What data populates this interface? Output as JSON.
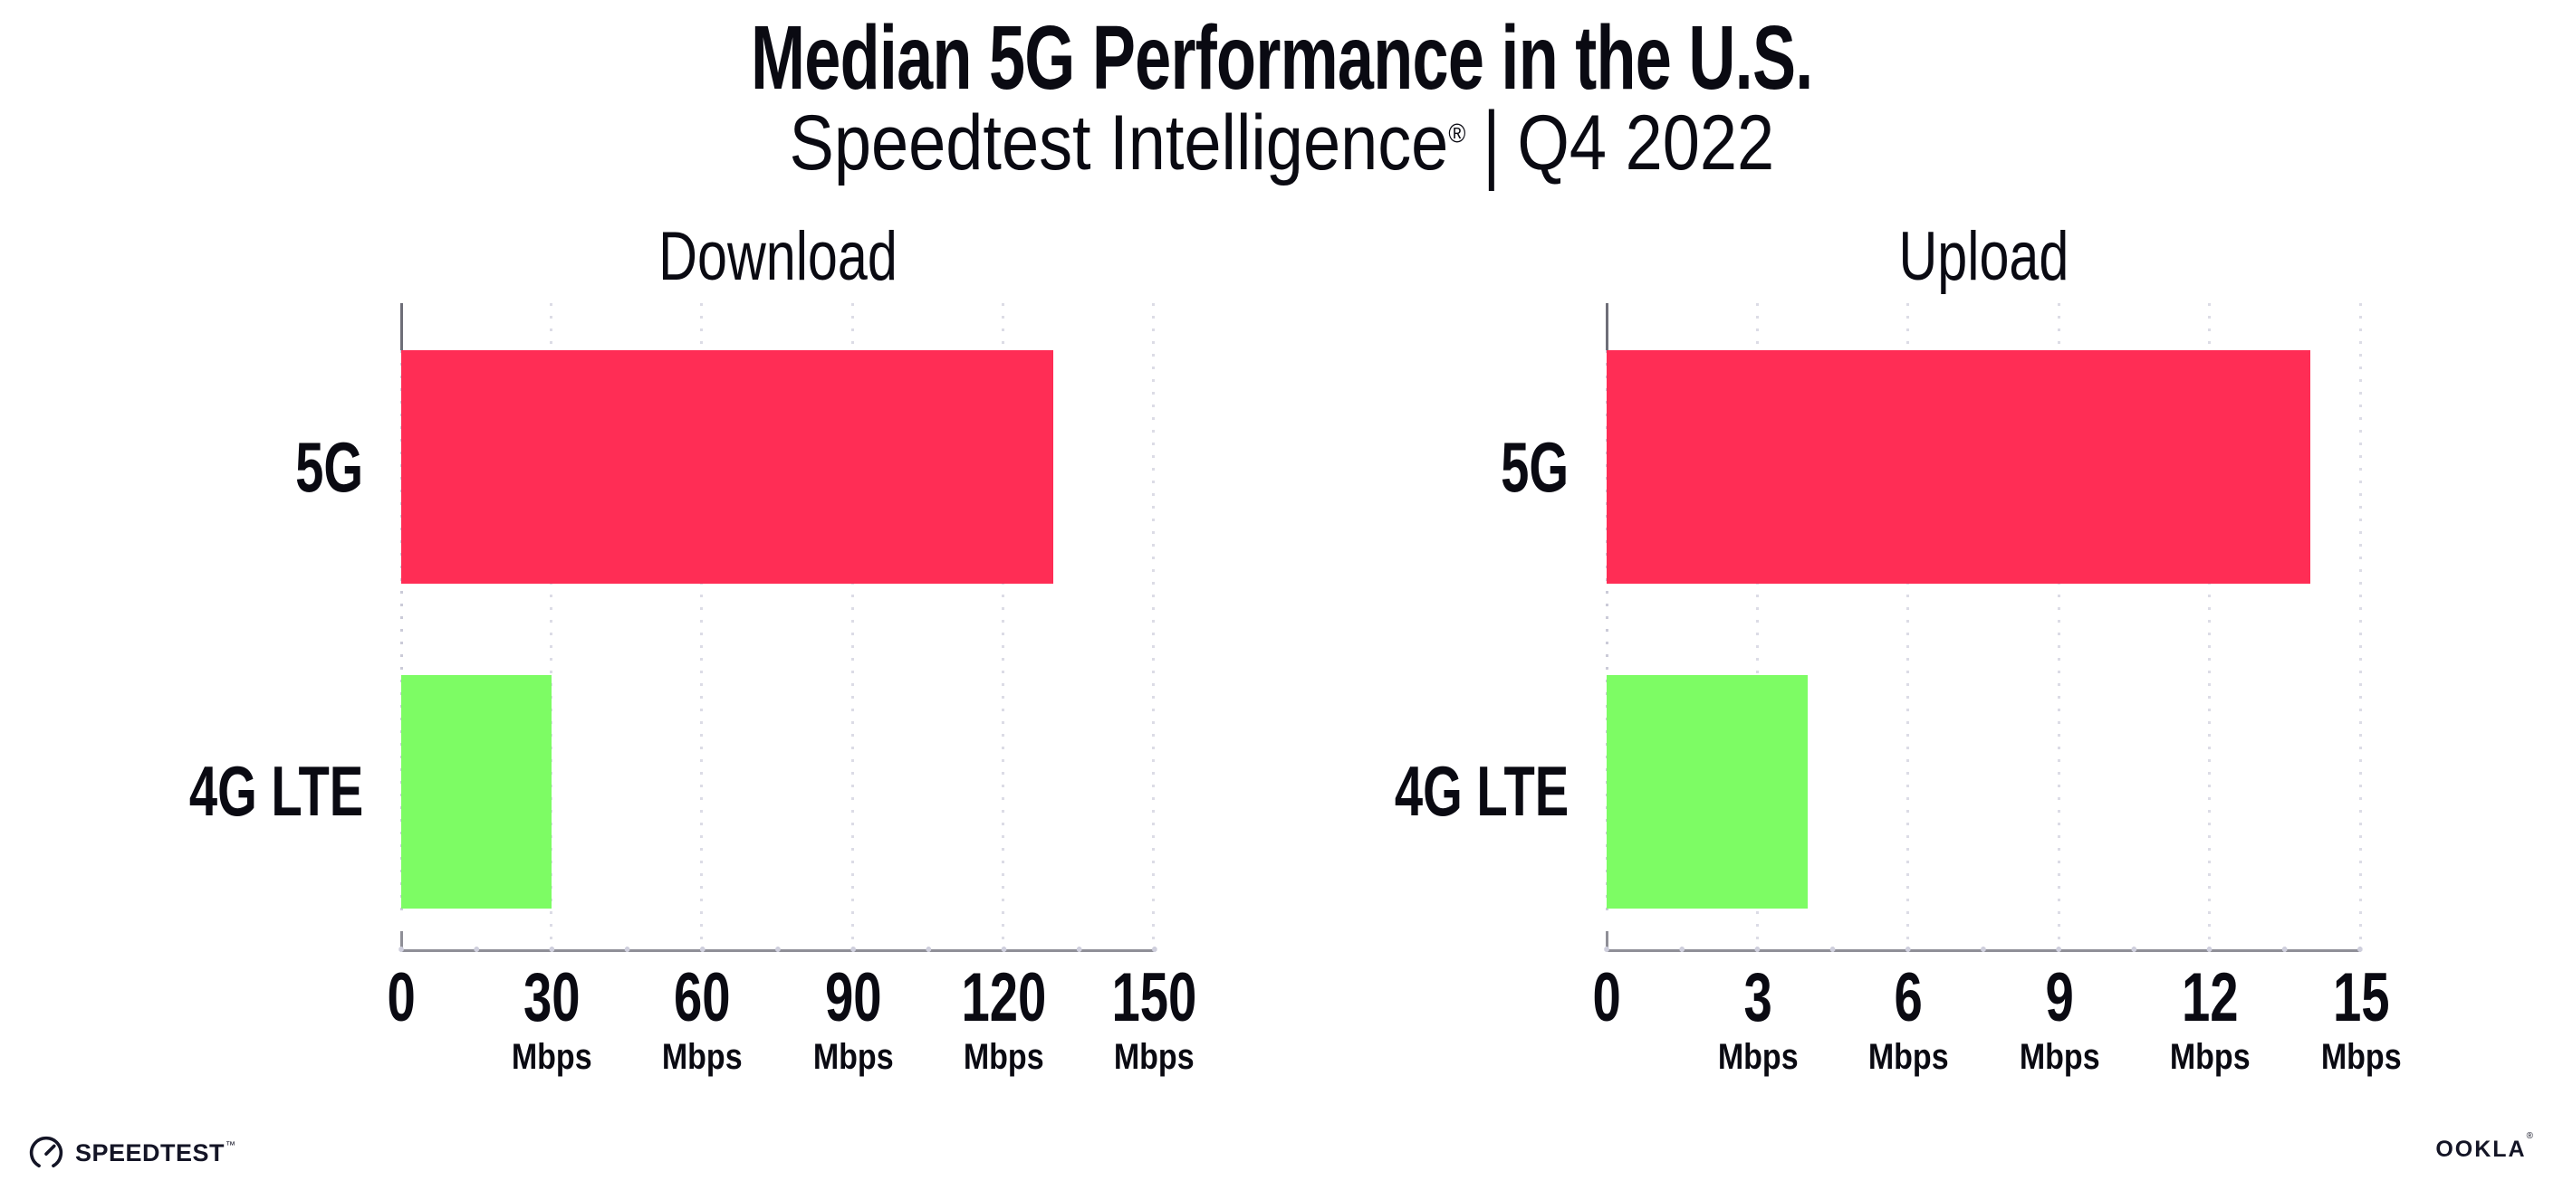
{
  "header": {
    "title": "Median 5G Performance in the U.S.",
    "subtitle_product": "Speedtest Intelligence",
    "subtitle_reg_mark": "®",
    "subtitle_separator": "|",
    "subtitle_period": "Q4 2022"
  },
  "chart_data": [
    {
      "type": "bar",
      "orientation": "horizontal",
      "title": "Download",
      "categories": [
        "5G",
        "4G LTE"
      ],
      "values": [
        130,
        30
      ],
      "unit": "Mbps",
      "xlim": [
        0,
        150
      ],
      "tick_labels": [
        "0",
        "30",
        "60",
        "90",
        "120",
        "150"
      ],
      "bar_colors": [
        "#FF2D55",
        "#7DFC64"
      ],
      "grid": "dotted-vertical-major"
    },
    {
      "type": "bar",
      "orientation": "horizontal",
      "title": "Upload",
      "categories": [
        "5G",
        "4G LTE"
      ],
      "values": [
        14,
        4
      ],
      "unit": "Mbps",
      "xlim": [
        0,
        15
      ],
      "tick_labels": [
        "0",
        "3",
        "6",
        "9",
        "12",
        "15"
      ],
      "bar_colors": [
        "#FF2D55",
        "#7DFC64"
      ],
      "grid": "dotted-vertical-major"
    }
  ],
  "footer": {
    "speedtest_logo_text": "SPEEDTEST",
    "speedtest_mark": "™",
    "ookla_logo_text": "OOKLA",
    "ookla_mark": "®"
  }
}
